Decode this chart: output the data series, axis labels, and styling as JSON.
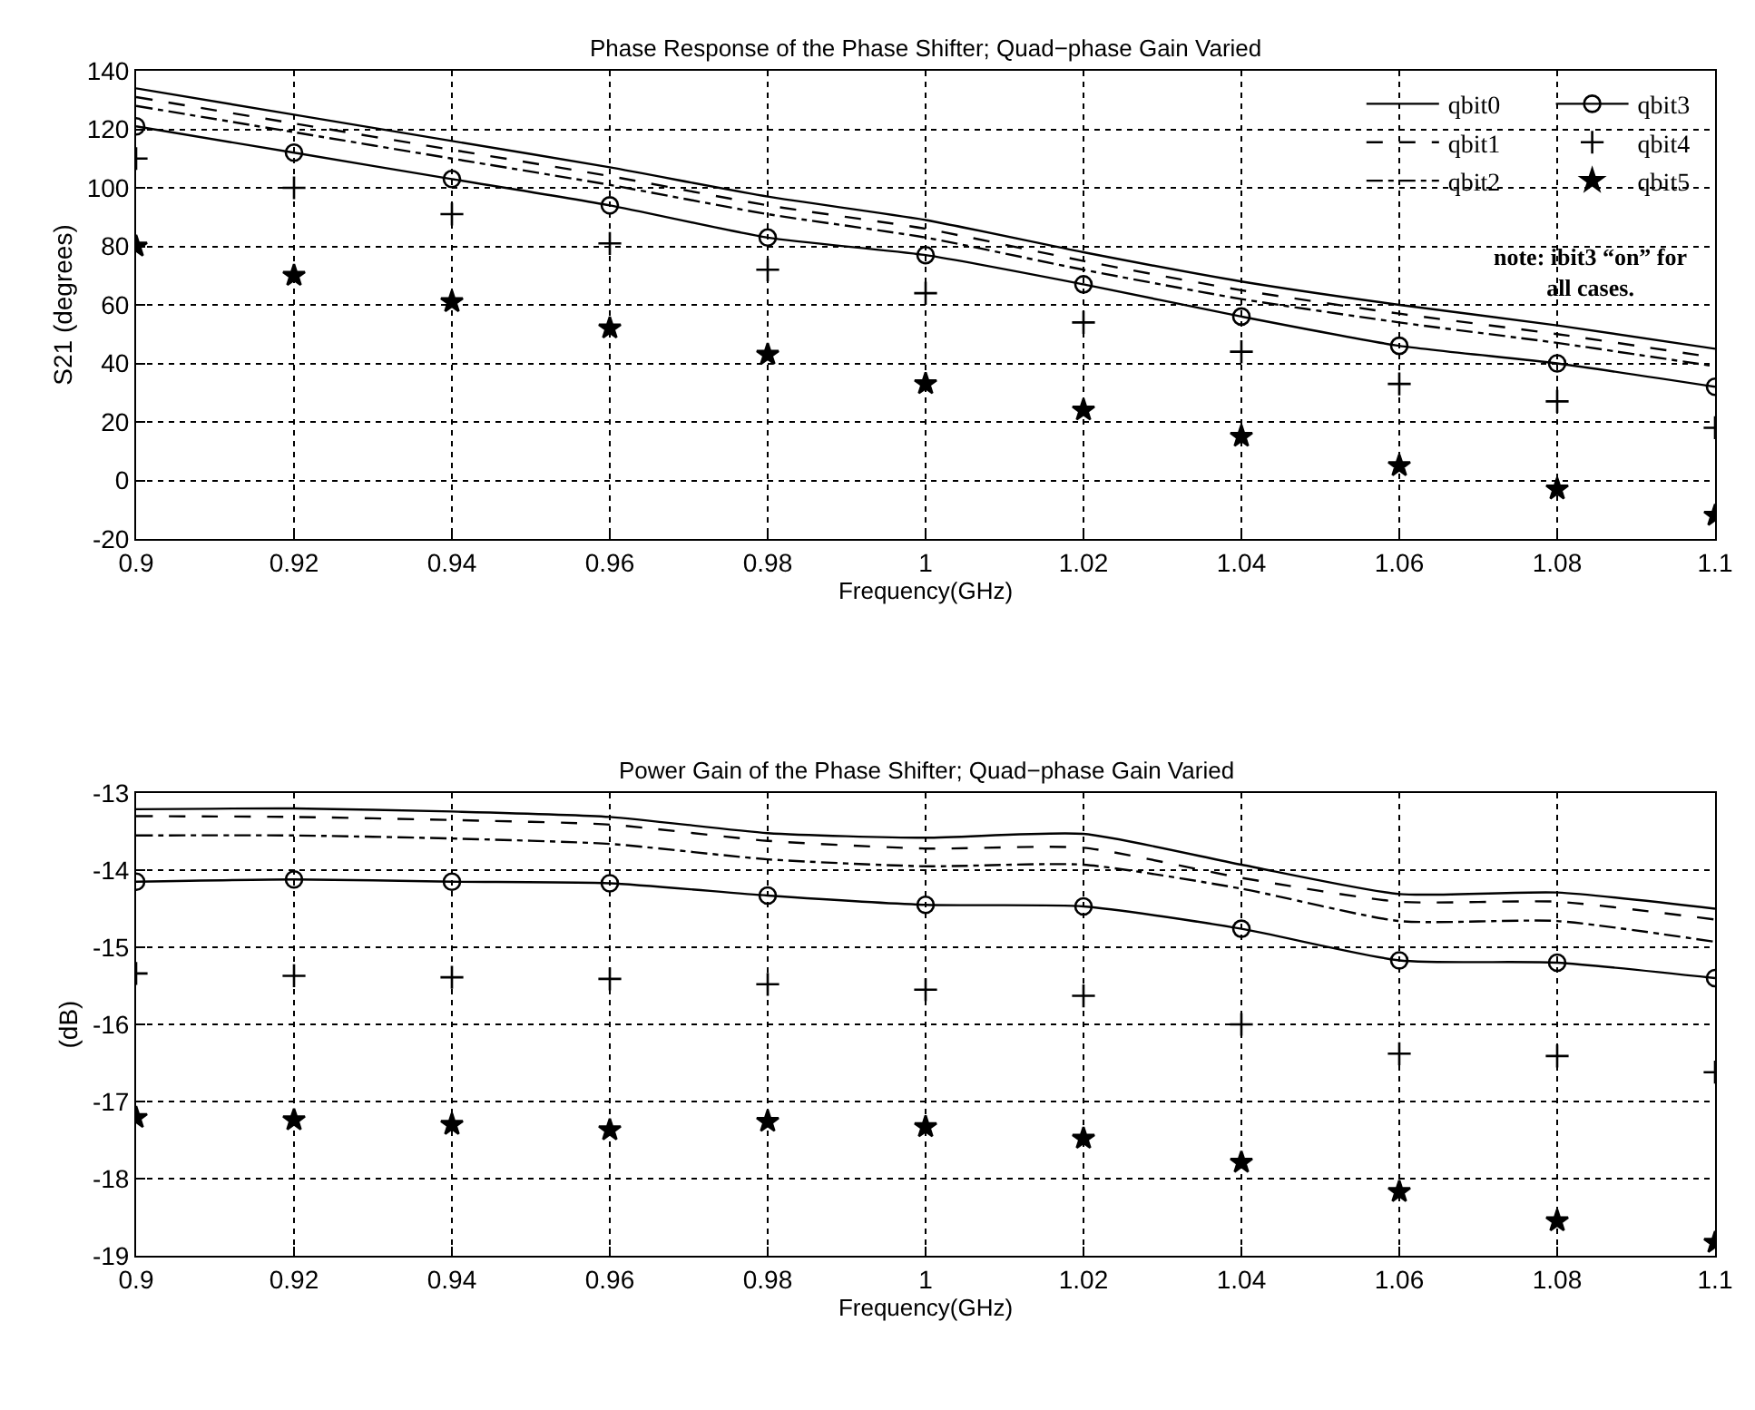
{
  "chart_data": [
    {
      "type": "line",
      "title": "Phase Response of the Phase Shifter; Quad−phase Gain Varied",
      "xlabel": "Frequency(GHz)",
      "ylabel": "S21 (degrees)",
      "x": [
        0.9,
        0.92,
        0.94,
        0.96,
        0.98,
        1.0,
        1.02,
        1.04,
        1.06,
        1.08,
        1.1
      ],
      "series": [
        {
          "name": "qbit0",
          "color": "#000000",
          "line_style": "solid",
          "marker": "none",
          "values": [
            134,
            125,
            116,
            107,
            97,
            89,
            78,
            68,
            60,
            53,
            45
          ]
        },
        {
          "name": "qbit1",
          "color": "#000000",
          "line_style": "dashed",
          "marker": "none",
          "values": [
            131,
            122,
            113,
            104,
            94,
            86,
            75,
            65,
            57,
            50,
            42
          ]
        },
        {
          "name": "qbit2",
          "color": "#000000",
          "line_style": "dashdot",
          "marker": "none",
          "values": [
            128,
            119,
            110,
            101,
            91,
            83,
            72,
            62,
            54,
            47,
            39
          ]
        },
        {
          "name": "qbit3",
          "color": "#000000",
          "line_style": "solid",
          "marker": "circle",
          "values": [
            121,
            112,
            103,
            94,
            83,
            77,
            67,
            56,
            46,
            40,
            32
          ]
        },
        {
          "name": "qbit4",
          "type": "scatter",
          "color": "#000000",
          "marker": "cross",
          "values": [
            110,
            100,
            91,
            81,
            72,
            64,
            54,
            44,
            33,
            27,
            18
          ]
        },
        {
          "name": "qbit5",
          "type": "scatter",
          "color": "#000000",
          "marker": "star",
          "values": [
            80,
            70,
            61,
            52,
            43,
            33,
            24,
            15,
            5,
            -3,
            -12
          ]
        }
      ],
      "xlim": [
        0.9,
        1.1
      ],
      "xticks": [
        0.9,
        0.92,
        0.94,
        0.96,
        0.98,
        1,
        1.02,
        1.04,
        1.06,
        1.08,
        1.1
      ],
      "ylim": [
        -20,
        140
      ],
      "yticks": [
        -20,
        0,
        20,
        40,
        60,
        80,
        100,
        120,
        140
      ],
      "grid": true,
      "legend": "top right",
      "annotations": [
        "note: ibit3 “on” for\nall cases."
      ]
    },
    {
      "type": "line",
      "title": "Power Gain of the Phase Shifter; Quad−phase Gain Varied",
      "xlabel": "Frequency(GHz)",
      "ylabel": "(dB)",
      "x": [
        0.9,
        0.92,
        0.94,
        0.96,
        0.98,
        1.0,
        1.02,
        1.04,
        1.06,
        1.08,
        1.1
      ],
      "series": [
        {
          "color": "#000000",
          "line_style": "solid",
          "marker": "none",
          "values": [
            -13.21,
            -13.2,
            -13.24,
            -13.31,
            -13.52,
            -13.58,
            -13.53,
            -13.93,
            -14.31,
            -14.29,
            -14.5
          ]
        },
        {
          "color": "#000000",
          "line_style": "dashed",
          "marker": "none",
          "values": [
            -13.3,
            -13.31,
            -13.35,
            -13.41,
            -13.62,
            -13.72,
            -13.71,
            -14.1,
            -14.41,
            -14.41,
            -14.64
          ]
        },
        {
          "color": "#000000",
          "line_style": "dashdot",
          "marker": "none",
          "values": [
            -13.55,
            -13.55,
            -13.59,
            -13.66,
            -13.86,
            -13.95,
            -13.93,
            -14.24,
            -14.66,
            -14.66,
            -14.93
          ]
        },
        {
          "color": "#000000",
          "line_style": "solid",
          "marker": "circle",
          "values": [
            -14.15,
            -14.12,
            -14.15,
            -14.17,
            -14.33,
            -14.45,
            -14.47,
            -14.76,
            -15.17,
            -15.2,
            -15.4
          ]
        },
        {
          "type": "scatter",
          "color": "#000000",
          "marker": "cross",
          "values": [
            -15.34,
            -15.37,
            -15.39,
            -15.41,
            -15.48,
            -15.55,
            -15.63,
            -16.0,
            -16.38,
            -16.41,
            -16.62
          ]
        },
        {
          "type": "scatter",
          "color": "#000000",
          "marker": "star",
          "values": [
            -17.21,
            -17.24,
            -17.3,
            -17.37,
            -17.26,
            -17.33,
            -17.48,
            -17.79,
            -18.17,
            -18.55,
            -18.83
          ]
        }
      ],
      "xlim": [
        0.9,
        1.1
      ],
      "xticks": [
        0.9,
        0.92,
        0.94,
        0.96,
        0.98,
        1,
        1.02,
        1.04,
        1.06,
        1.08,
        1.1
      ],
      "ylim": [
        -19,
        -13
      ],
      "yticks": [
        -19,
        -18,
        -17,
        -16,
        -15,
        -14,
        -13
      ],
      "grid": true
    }
  ]
}
